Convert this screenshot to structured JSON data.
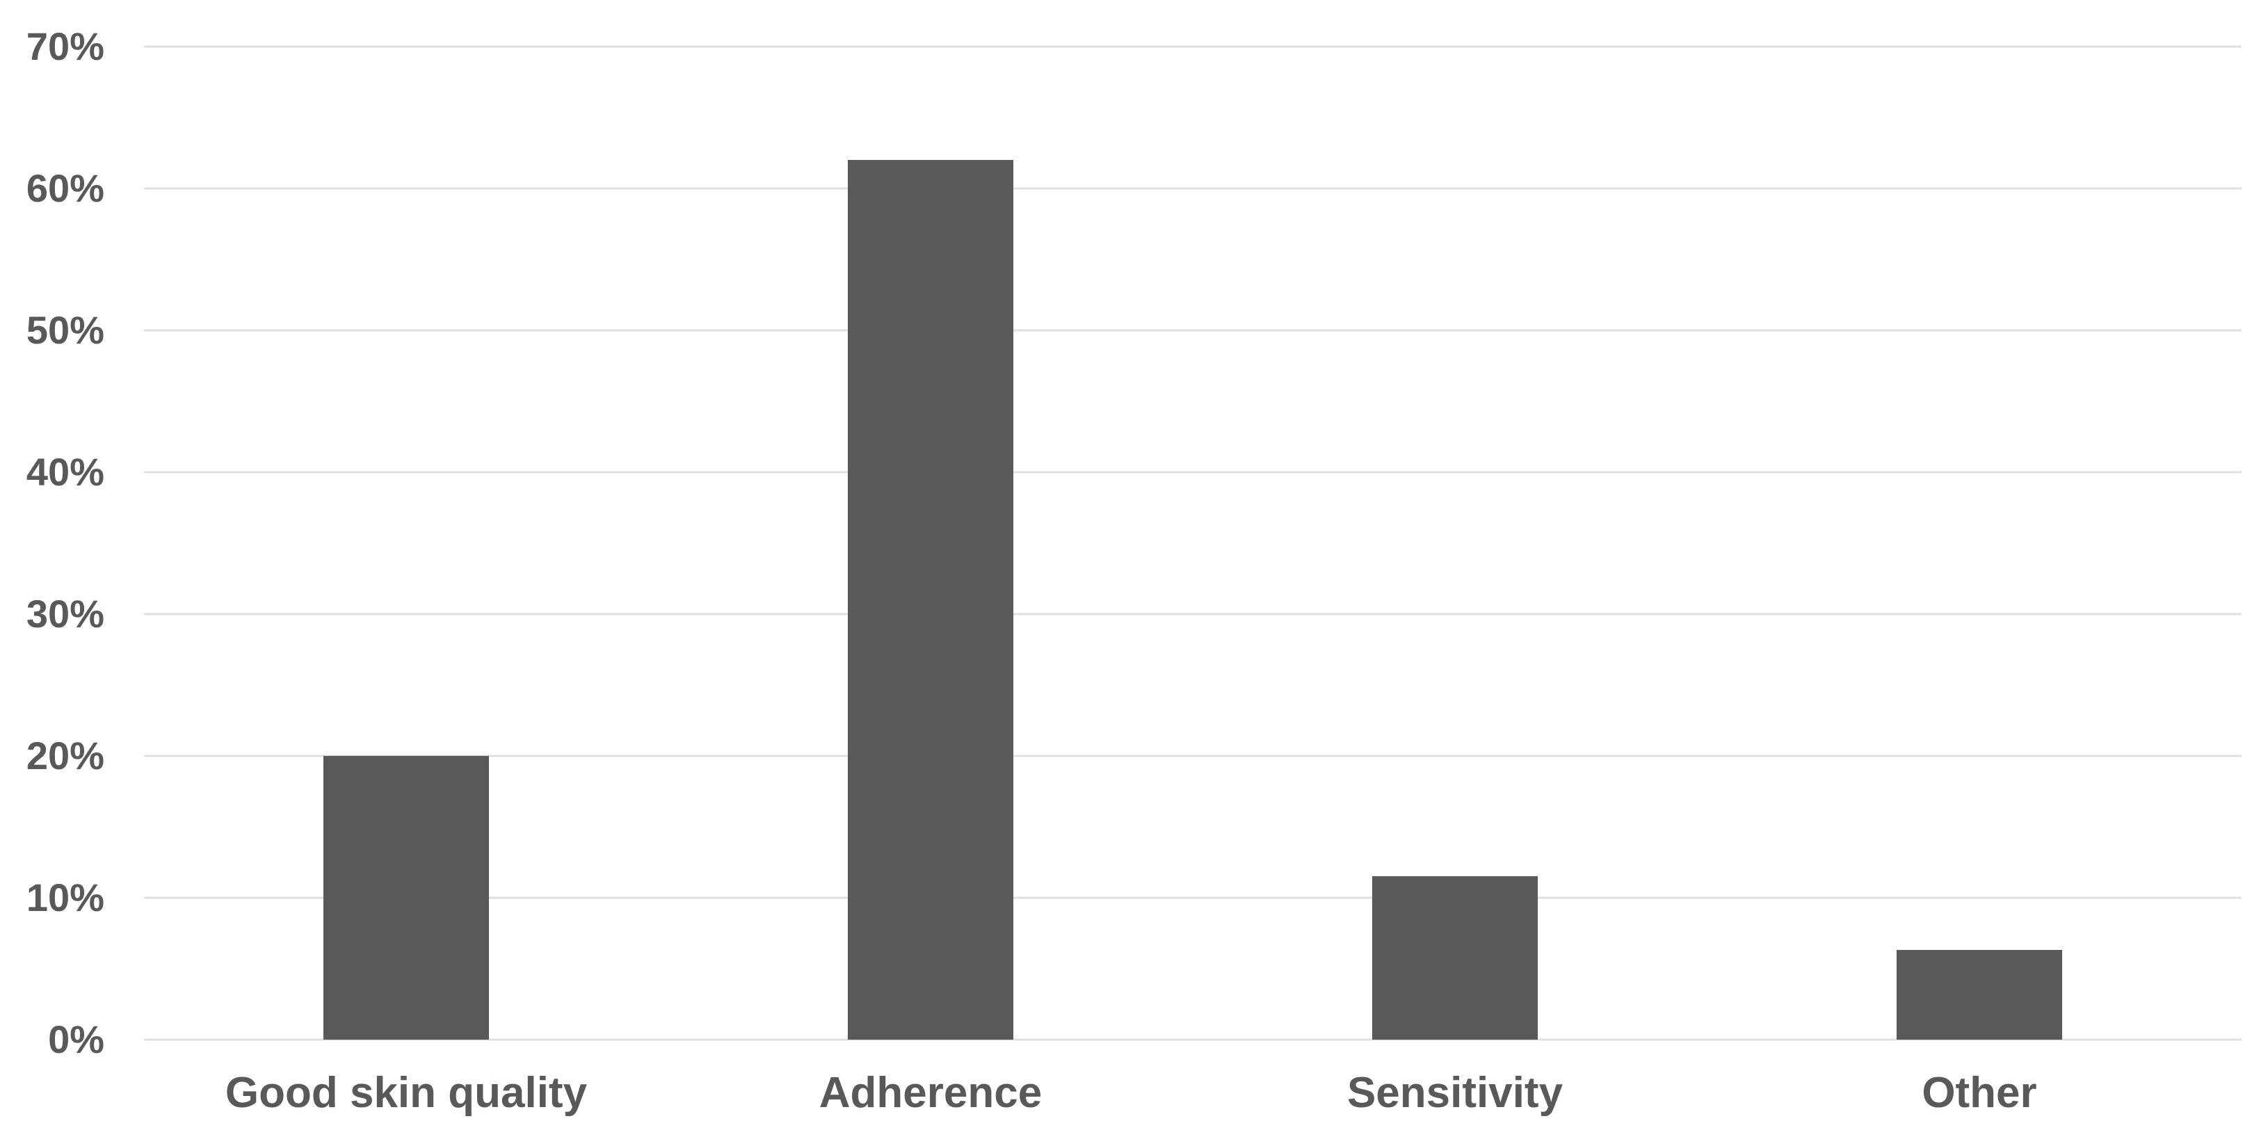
{
  "chart_data": {
    "type": "bar",
    "categories": [
      "Good skin quality",
      "Adherence",
      "Sensitivity",
      "Other"
    ],
    "values": [
      20,
      62,
      11.5,
      6.3
    ],
    "title": "",
    "xlabel": "",
    "ylabel": "",
    "ylim": [
      0,
      70
    ],
    "ytick_step": 10,
    "ytick_labels": [
      "0%",
      "10%",
      "20%",
      "30%",
      "40%",
      "50%",
      "60%",
      "70%"
    ],
    "grid": true,
    "legend": false,
    "colors": {
      "bar_fill": "#595959",
      "gridline": "#e0e0e0",
      "axis_label_text": "#595959",
      "background": "#ffffff"
    },
    "layout_hints": {
      "bar_width_fraction_of_slot": 0.3156,
      "gridlines_horizontal_only": true
    }
  }
}
